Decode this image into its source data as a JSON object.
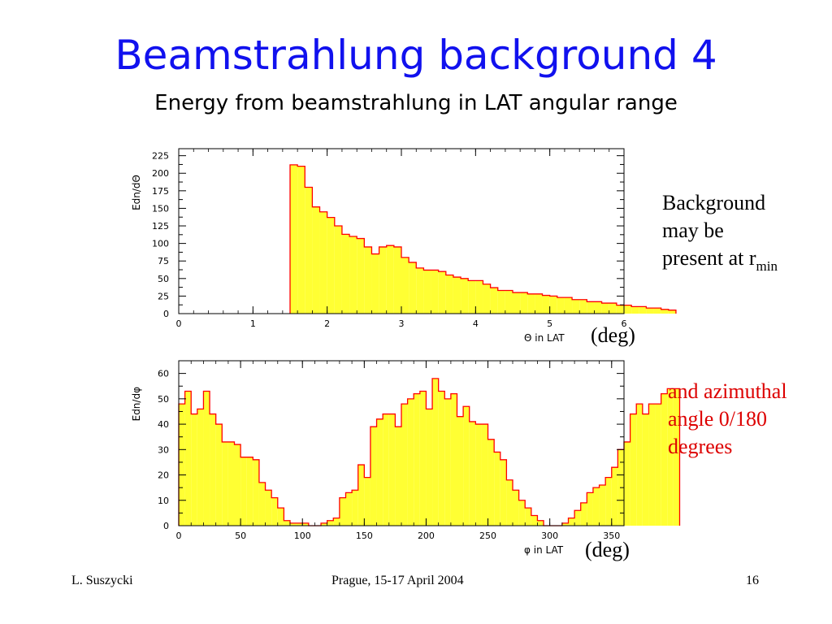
{
  "title": "Beamstrahlung background 4",
  "subtitle": "Energy from beamstrahlung in LAT angular range",
  "notes": {
    "top": {
      "line1": "Background",
      "line2": "may be",
      "line3": "present at r",
      "subscript": "min"
    },
    "bottom": {
      "line1": "and azimuthal",
      "line2": "angle 0/180",
      "line3": "degrees"
    }
  },
  "unit_label_top": "(deg)",
  "unit_label_bottom": "(deg)",
  "footer": {
    "author": "L. Suszycki",
    "event": "Prague, 15-17 April 2004",
    "page": "16"
  },
  "colors": {
    "title": "#1111ee",
    "fill": "#ffff33",
    "outline": "#ff0000",
    "note2": "#dd0000"
  },
  "chart_data": [
    {
      "type": "histogram",
      "xlabel": "Θ in LAT",
      "ylabel": "Edn/dΘ",
      "xlim": [
        0,
        6
      ],
      "ylim": [
        0,
        235
      ],
      "xticks": [
        0,
        1,
        2,
        3,
        4,
        5,
        6
      ],
      "yticks": [
        0,
        25,
        50,
        75,
        100,
        125,
        150,
        175,
        200,
        225
      ],
      "bin_width": 0.1,
      "x_start": 1.5,
      "values": [
        212,
        210,
        180,
        152,
        145,
        137,
        125,
        113,
        110,
        107,
        95,
        85,
        95,
        97,
        95,
        80,
        73,
        65,
        62,
        62,
        60,
        55,
        52,
        50,
        47,
        47,
        42,
        37,
        33,
        33,
        30,
        30,
        28,
        28,
        26,
        25,
        23,
        23,
        20,
        20,
        17,
        17,
        15,
        15,
        12,
        12,
        10,
        10,
        8,
        8,
        6,
        5
      ]
    },
    {
      "type": "histogram",
      "xlabel": "φ in LAT",
      "ylabel": "Edn/dφ",
      "xlim": [
        0,
        360
      ],
      "ylim": [
        0,
        65
      ],
      "xticks": [
        0,
        50,
        100,
        150,
        200,
        250,
        300,
        350
      ],
      "yticks": [
        0,
        10,
        20,
        30,
        40,
        50,
        60
      ],
      "bin_width": 5,
      "x_start": 0,
      "values": [
        48,
        53,
        44,
        46,
        53,
        44,
        40,
        33,
        33,
        32,
        27,
        27,
        26,
        17,
        14,
        11,
        7,
        2,
        1,
        1,
        1,
        0,
        0,
        1,
        2,
        3,
        11,
        13,
        14,
        24,
        19,
        39,
        42,
        44,
        44,
        39,
        48,
        50,
        52,
        53,
        46,
        58,
        53,
        50,
        52,
        43,
        47,
        41,
        40,
        40,
        34,
        29,
        26,
        18,
        14,
        10,
        7,
        4,
        2,
        0,
        0,
        0,
        1,
        3,
        6,
        9,
        13,
        15,
        16,
        19,
        23,
        30,
        33,
        44,
        48,
        44,
        48,
        48,
        52,
        54,
        54
      ]
    }
  ]
}
